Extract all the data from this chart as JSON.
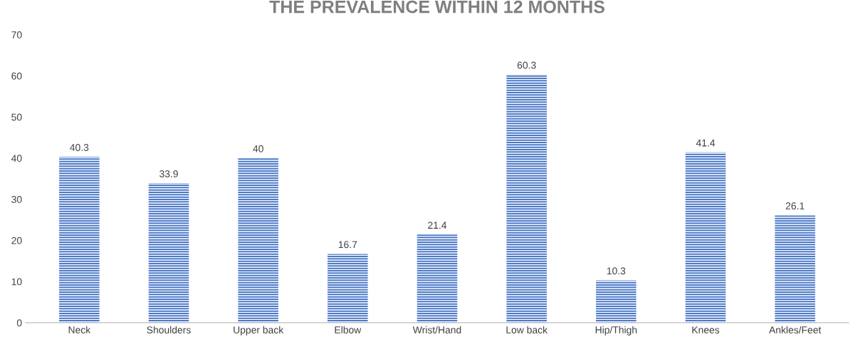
{
  "chart_data": {
    "type": "bar",
    "title": "THE PREVALENCE WITHIN 12 MONTHS",
    "categories": [
      "Neck",
      "Shoulders",
      "Upper back",
      "Elbow",
      "Wrist/Hand",
      "Low back",
      "Hip/Thigh",
      "Knees",
      "Ankles/Feet"
    ],
    "values": [
      40.3,
      33.9,
      40,
      16.7,
      21.4,
      60.3,
      10.3,
      41.4,
      26.1
    ],
    "color": "#4a78c8",
    "ylim": [
      0,
      70
    ],
    "yticks": [
      0,
      10,
      20,
      30,
      40,
      50,
      60,
      70
    ],
    "grid": false,
    "data_labels": true
  }
}
